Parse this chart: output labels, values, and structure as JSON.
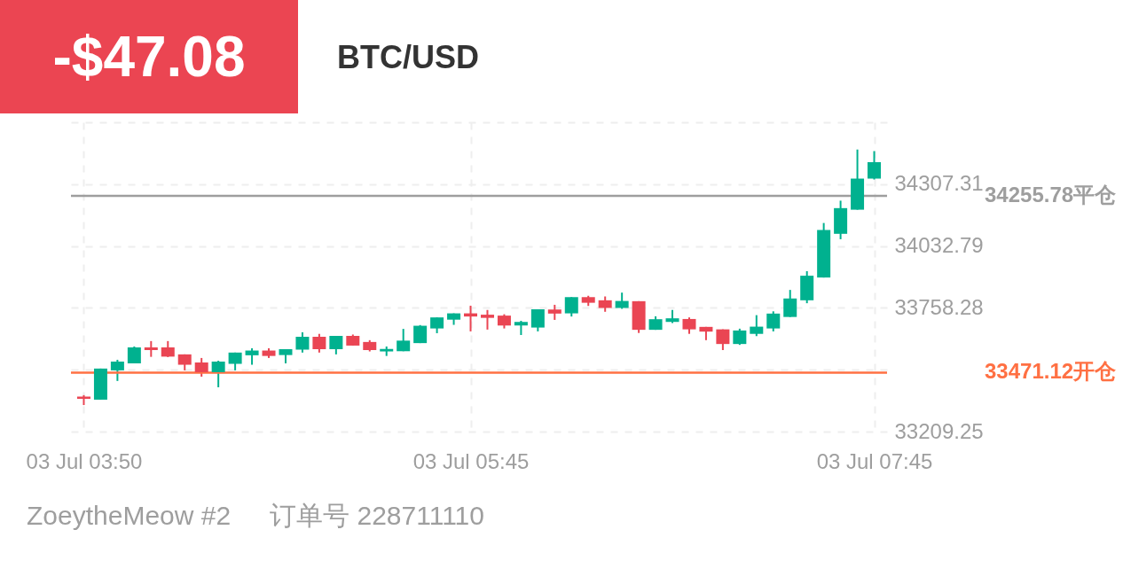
{
  "chart_data": {
    "type": "candlestick",
    "title": "BTC/USD",
    "annotations": [
      "-$47.08",
      "ZoeytheMeow #2",
      "订单号 228711110"
    ],
    "categories": [
      "03 Jul  03:50",
      null,
      null,
      null,
      null,
      null,
      null,
      null,
      null,
      null,
      null,
      null,
      null,
      null,
      null,
      null,
      null,
      null,
      null,
      null,
      null,
      null,
      null,
      "03 Jul  05:45",
      null,
      null,
      null,
      null,
      null,
      null,
      null,
      null,
      null,
      null,
      null,
      null,
      null,
      null,
      null,
      null,
      null,
      null,
      null,
      null,
      null,
      null,
      null,
      "03 Jul  07:45"
    ],
    "ohlc": [
      [
        33365,
        33371,
        33327,
        33355
      ],
      [
        33351,
        33489,
        33351,
        33489
      ],
      [
        33481,
        33528,
        33434,
        33520
      ],
      [
        33512,
        33587,
        33512,
        33583
      ],
      [
        33583,
        33611,
        33541,
        33571
      ],
      [
        33583,
        33611,
        33540,
        33542
      ],
      [
        33552,
        33552,
        33481,
        33506
      ],
      [
        33516,
        33536,
        33453,
        33473
      ],
      [
        33473,
        33524,
        33406,
        33520
      ],
      [
        33510,
        33560,
        33481,
        33560
      ],
      [
        33548,
        33579,
        33506,
        33569
      ],
      [
        33569,
        33579,
        33536,
        33545
      ],
      [
        33549,
        33575,
        33512,
        33575
      ],
      [
        33573,
        33650,
        33560,
        33630
      ],
      [
        33630,
        33643,
        33560,
        33575
      ],
      [
        33575,
        33634,
        33552,
        33634
      ],
      [
        33634,
        33640,
        33591,
        33591
      ],
      [
        33607,
        33615,
        33565,
        33571
      ],
      [
        33565,
        33587,
        33545,
        33576
      ],
      [
        33566,
        33665,
        33566,
        33613
      ],
      [
        33602,
        33682,
        33602,
        33679
      ],
      [
        33667,
        33716,
        33646,
        33716
      ],
      [
        33706,
        33734,
        33683,
        33734
      ],
      [
        33734,
        33768,
        33654,
        33720
      ],
      [
        33728,
        33749,
        33662,
        33714
      ],
      [
        33724,
        33730,
        33667,
        33680
      ],
      [
        33680,
        33701,
        33638,
        33696
      ],
      [
        33671,
        33752,
        33654,
        33752
      ],
      [
        33751,
        33772,
        33705,
        33733
      ],
      [
        33734,
        33806,
        33720,
        33806
      ],
      [
        33806,
        33812,
        33767,
        33781
      ],
      [
        33792,
        33809,
        33741,
        33758
      ],
      [
        33758,
        33826,
        33754,
        33789
      ],
      [
        33788,
        33788,
        33647,
        33661
      ],
      [
        33661,
        33721,
        33661,
        33708
      ],
      [
        33696,
        33749,
        33691,
        33712
      ],
      [
        33709,
        33716,
        33643,
        33663
      ],
      [
        33674,
        33674,
        33615,
        33653
      ],
      [
        33663,
        33663,
        33571,
        33598
      ],
      [
        33598,
        33666,
        33594,
        33658
      ],
      [
        33643,
        33726,
        33633,
        33675
      ],
      [
        33667,
        33743,
        33654,
        33733
      ],
      [
        33718,
        33838,
        33718,
        33800
      ],
      [
        33792,
        33921,
        33779,
        33901
      ],
      [
        33893,
        34135,
        33893,
        34104
      ],
      [
        34087,
        34234,
        34063,
        34201
      ],
      [
        34194,
        34461,
        34194,
        34332
      ],
      [
        34332,
        34454,
        34328,
        34405
      ]
    ],
    "colors": [
      "#ea4553",
      "#00b18f",
      "#00b18f",
      "#00b18f",
      "#ea4553",
      "#ea4553",
      "#ea4553",
      "#ea4553",
      "#00b18f",
      "#00b18f",
      "#00b18f",
      "#ea4553",
      "#00b18f",
      "#00b18f",
      "#ea4553",
      "#00b18f",
      "#ea4553",
      "#ea4553",
      "#00b18f",
      "#00b18f",
      "#00b18f",
      "#00b18f",
      "#00b18f",
      "#ea4553",
      "#ea4553",
      "#ea4553",
      "#00b18f",
      "#00b18f",
      "#ea4553",
      "#00b18f",
      "#ea4553",
      "#ea4553",
      "#00b18f",
      "#ea4553",
      "#00b18f",
      "#00b18f",
      "#ea4553",
      "#ea4553",
      "#ea4553",
      "#00b18f",
      "#00b18f",
      "#00b18f",
      "#00b18f",
      "#00b18f",
      "#00b18f",
      "#00b18f",
      "#00b18f",
      "#00b18f"
    ],
    "ylim": [
      33209.25,
      34581.82
    ],
    "yticks": [
      33209.25,
      {
        "value": 33483.77,
        "label": null
      },
      33758.28,
      34032.79,
      34307.31,
      {
        "value": 34581.82,
        "label": null
      }
    ],
    "grid": true,
    "ref_lines": [
      {
        "axis": "y",
        "value": 34255.78,
        "label": "34255.78平仓",
        "color": "#9e9e9e"
      },
      {
        "axis": "y",
        "value": 33471.12,
        "label": "33471.12开仓",
        "color": "#ff7043"
      }
    ]
  }
}
